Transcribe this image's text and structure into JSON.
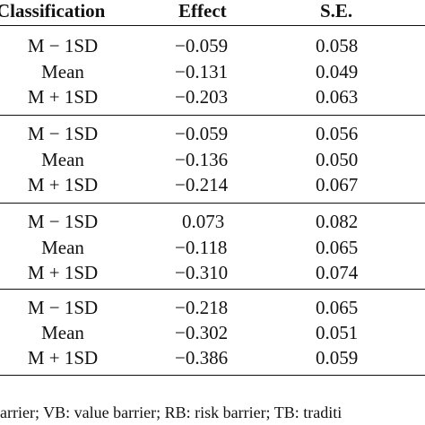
{
  "headers": {
    "classification": "Classification",
    "effect": "Effect",
    "se": "S.E."
  },
  "groups": [
    {
      "rows": [
        {
          "classification": "M − 1SD",
          "effect": "−0.059",
          "se": "0.058"
        },
        {
          "classification": "Mean",
          "effect": "−0.131",
          "se": "0.049"
        },
        {
          "classification": "M + 1SD",
          "effect": "−0.203",
          "se": "0.063"
        }
      ]
    },
    {
      "rows": [
        {
          "classification": "M − 1SD",
          "effect": "−0.059",
          "se": "0.056"
        },
        {
          "classification": "Mean",
          "effect": "−0.136",
          "se": "0.050"
        },
        {
          "classification": "M + 1SD",
          "effect": "−0.214",
          "se": "0.067"
        }
      ]
    },
    {
      "rows": [
        {
          "classification": "M − 1SD",
          "effect": "0.073",
          "se": "0.082"
        },
        {
          "classification": "Mean",
          "effect": "−0.118",
          "se": "0.065"
        },
        {
          "classification": "M + 1SD",
          "effect": "−0.310",
          "se": "0.074"
        }
      ]
    },
    {
      "rows": [
        {
          "classification": "M − 1SD",
          "effect": "−0.218",
          "se": "0.065"
        },
        {
          "classification": "Mean",
          "effect": "−0.302",
          "se": "0.051"
        },
        {
          "classification": "M + 1SD",
          "effect": "−0.386",
          "se": "0.059"
        }
      ]
    }
  ],
  "footnote": "arrier; VB: value barrier; RB: risk barrier; TB: traditi"
}
